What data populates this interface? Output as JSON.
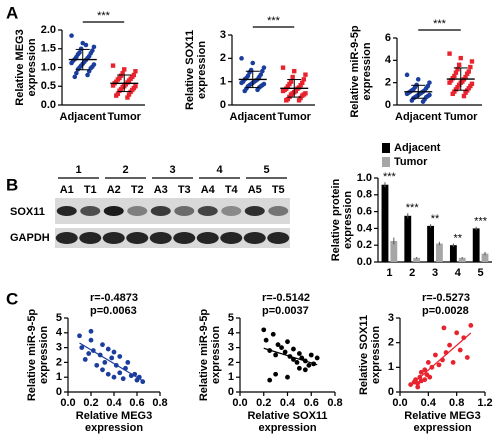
{
  "panel_labels": [
    "A",
    "B",
    "C"
  ],
  "blot": {
    "groups": [
      "1",
      "2",
      "3",
      "4",
      "5"
    ],
    "lanes": [
      "A1",
      "T1",
      "A2",
      "T2",
      "A3",
      "T3",
      "A4",
      "T4",
      "A5",
      "T5"
    ],
    "proteins": [
      "SOX11",
      "GAPDH"
    ]
  },
  "chart_data": [
    {
      "type": "strip",
      "ylabel": [
        "Relative MEG3",
        "expression"
      ],
      "categories": [
        "Adjacent",
        "Tumor"
      ],
      "colors": [
        "#1a3d9e",
        "#e8232e"
      ],
      "values": [
        [
          1.85,
          1.65,
          1.55,
          1.5,
          1.45,
          1.4,
          1.38,
          1.35,
          1.3,
          1.28,
          1.25,
          1.22,
          1.2,
          1.18,
          1.15,
          1.12,
          1.1,
          1.08,
          1.05,
          1.02,
          1.0,
          0.98,
          0.95,
          0.9,
          0.85,
          0.8,
          0.75,
          1.6
        ],
        [
          1.05,
          0.95,
          0.9,
          0.85,
          0.8,
          0.78,
          0.75,
          0.72,
          0.7,
          0.68,
          0.65,
          0.62,
          0.6,
          0.58,
          0.55,
          0.52,
          0.5,
          0.5,
          0.48,
          0.45,
          0.42,
          0.4,
          0.38,
          0.35,
          0.3,
          0.28,
          0.25,
          0.2
        ]
      ],
      "significance": "***",
      "ylim": [
        0,
        2
      ],
      "yticks": [
        {
          "value": 0,
          "label": "0.0"
        },
        0.5,
        {
          "value": 1,
          "label": "1.0"
        },
        1.5,
        {
          "value": 2,
          "label": "2.0"
        }
      ]
    },
    {
      "type": "strip",
      "ylabel": [
        "Relative SOX11",
        "expression"
      ],
      "categories": [
        "Adjacent",
        "Tumor"
      ],
      "colors": [
        "#1a3d9e",
        "#e8232e"
      ],
      "values": [
        [
          2.0,
          1.8,
          1.6,
          1.5,
          1.45,
          1.4,
          1.3,
          1.25,
          1.2,
          1.15,
          1.1,
          1.1,
          1.05,
          1.0,
          1.0,
          0.95,
          0.95,
          0.9,
          0.9,
          0.85,
          0.85,
          0.8,
          0.8,
          0.75,
          0.7,
          0.65,
          0.6
        ],
        [
          1.6,
          1.45,
          1.3,
          1.2,
          1.1,
          1.0,
          0.95,
          0.9,
          0.85,
          0.8,
          0.75,
          0.7,
          0.7,
          0.65,
          0.6,
          0.6,
          0.55,
          0.5,
          0.5,
          0.45,
          0.45,
          0.4,
          0.35,
          0.3,
          0.25,
          0.2,
          0.2
        ]
      ],
      "significance": "***",
      "ylim": [
        0,
        3
      ],
      "yticks": [
        0,
        1,
        2,
        3
      ]
    },
    {
      "type": "strip",
      "ylabel": [
        "Relative miR-9-5p",
        "expression"
      ],
      "categories": [
        "Adjacent",
        "Tumor"
      ],
      "colors": [
        "#1a3d9e",
        "#e8232e"
      ],
      "values": [
        [
          2.7,
          2.3,
          2.0,
          1.8,
          1.7,
          1.6,
          1.5,
          1.4,
          1.3,
          1.3,
          1.2,
          1.2,
          1.1,
          1.1,
          1.0,
          1.0,
          0.9,
          0.9,
          0.8,
          0.8,
          0.7,
          0.7,
          0.6,
          0.5,
          0.4,
          0.3
        ],
        [
          4.6,
          4.2,
          3.9,
          3.6,
          3.4,
          3.2,
          3.0,
          2.9,
          2.8,
          2.6,
          2.5,
          2.4,
          2.3,
          2.2,
          2.1,
          2.0,
          2.0,
          1.9,
          1.8,
          1.7,
          1.6,
          1.5,
          1.4,
          1.3,
          1.2,
          1.1,
          1.0,
          0.8
        ]
      ],
      "significance": "***",
      "ylim": [
        0,
        6
      ],
      "yticks": [
        0,
        2,
        4,
        6
      ]
    },
    {
      "type": "bar",
      "ylabel": [
        "Relative protein",
        "expression"
      ],
      "categories": [
        "1",
        "2",
        "3",
        "4",
        "5"
      ],
      "series": [
        {
          "name": "Adjacent",
          "color": "#000000",
          "values": [
            0.92,
            0.55,
            0.43,
            0.2,
            0.4
          ],
          "errors": [
            0.03,
            0.03,
            0.02,
            0.02,
            0.02
          ]
        },
        {
          "name": "Tumor",
          "color": "#a6a6a6",
          "values": [
            0.25,
            0.05,
            0.22,
            0.05,
            0.1
          ],
          "errors": [
            0.04,
            0.01,
            0.02,
            0.01,
            0.02
          ]
        }
      ],
      "annotations": [
        "***",
        "***",
        "**",
        "**",
        "***"
      ],
      "ylim": [
        0,
        1
      ],
      "yticks": [
        {
          "value": 0,
          "label": "0.0"
        },
        0.2,
        0.4,
        0.6,
        0.8,
        {
          "value": 1,
          "label": "1.0"
        }
      ]
    },
    {
      "type": "scatter",
      "color": "#1a3d9e",
      "annotations": [
        "r=-0.4873",
        "p=0.0063"
      ],
      "xlabel": [
        "Relative MEG3",
        "expression"
      ],
      "ylabel": [
        "Relative miR-9-5p",
        "expression"
      ],
      "x": [
        0.1,
        0.12,
        0.15,
        0.18,
        0.2,
        0.22,
        0.25,
        0.28,
        0.3,
        0.3,
        0.32,
        0.35,
        0.35,
        0.38,
        0.4,
        0.4,
        0.42,
        0.45,
        0.45,
        0.48,
        0.5,
        0.52,
        0.55,
        0.58,
        0.6,
        0.62,
        0.65,
        0.2
      ],
      "y": [
        3.8,
        3.0,
        2.2,
        2.6,
        3.5,
        2.8,
        1.8,
        2.5,
        3.2,
        1.5,
        2.0,
        2.9,
        1.2,
        2.3,
        2.7,
        1.0,
        1.8,
        2.4,
        1.3,
        0.9,
        1.6,
        2.0,
        1.1,
        1.2,
        0.8,
        1.0,
        0.7,
        4.1
      ],
      "xlim": [
        0,
        0.8
      ],
      "xticks": [
        {
          "value": 0,
          "label": "0.0"
        },
        0.2,
        0.4,
        0.6,
        0.8
      ],
      "ylim": [
        0,
        5
      ],
      "yticks": [
        0,
        1,
        2,
        3,
        4,
        5
      ]
    },
    {
      "type": "scatter",
      "color": "#000000",
      "annotations": [
        "r=-0.5142",
        "p=0.0037"
      ],
      "xlabel": [
        "Relative SOX11",
        "expression"
      ],
      "ylabel": [
        "Relative miR-9-5p",
        "expression"
      ],
      "x": [
        0.2,
        0.22,
        0.25,
        0.28,
        0.3,
        0.32,
        0.35,
        0.38,
        0.4,
        0.42,
        0.45,
        0.45,
        0.48,
        0.5,
        0.5,
        0.52,
        0.55,
        0.58,
        0.6,
        0.62,
        0.65,
        0.3,
        0.4,
        0.25,
        0.55
      ],
      "y": [
        4.2,
        3.5,
        2.8,
        3.9,
        2.5,
        3.2,
        3.0,
        2.7,
        3.4,
        2.4,
        2.2,
        2.9,
        2.0,
        2.6,
        1.6,
        2.3,
        2.1,
        1.8,
        2.5,
        1.9,
        2.3,
        1.2,
        1.0,
        0.8,
        1.5
      ],
      "xlim": [
        0,
        0.8
      ],
      "xticks": [
        {
          "value": 0,
          "label": "0.0"
        },
        0.2,
        0.4,
        0.6,
        0.8
      ],
      "ylim": [
        0,
        5
      ],
      "yticks": [
        0,
        1,
        2,
        3,
        4,
        5
      ]
    },
    {
      "type": "scatter",
      "color": "#e8232e",
      "annotations": [
        "r=-0.5273",
        "p=0.0028"
      ],
      "xlabel": [
        "Relative MEG3",
        "expression"
      ],
      "ylabel": [
        "Relative SOX11",
        "expression"
      ],
      "x": [
        0.15,
        0.2,
        0.22,
        0.25,
        0.28,
        0.3,
        0.3,
        0.35,
        0.38,
        0.4,
        0.42,
        0.45,
        0.5,
        0.55,
        0.6,
        0.62,
        0.65,
        0.7,
        0.75,
        0.8,
        0.85,
        0.9,
        0.95,
        1.0,
        0.25,
        0.35
      ],
      "y": [
        0.3,
        0.4,
        0.5,
        0.35,
        0.6,
        0.8,
        0.45,
        0.9,
        0.7,
        1.2,
        0.6,
        1.0,
        1.5,
        1.1,
        1.3,
        2.6,
        1.6,
        1.9,
        1.2,
        2.4,
        1.7,
        2.2,
        1.4,
        2.7,
        0.2,
        0.5
      ],
      "xlim": [
        0,
        1.2
      ],
      "xticks": [
        {
          "value": 0,
          "label": "0.0"
        },
        0.4,
        0.8,
        1.2
      ],
      "ylim": [
        0,
        3
      ],
      "yticks": [
        0,
        1,
        2,
        3
      ]
    }
  ]
}
